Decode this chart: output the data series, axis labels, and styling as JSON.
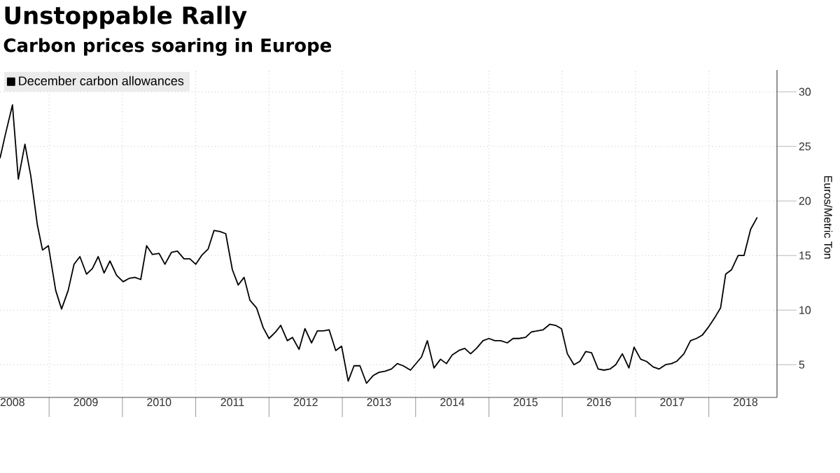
{
  "chart_data": {
    "type": "line",
    "title": "Unstoppable Rally",
    "subtitle": "Carbon prices soaring in Europe",
    "ylabel": "Euros/Metric Ton",
    "xlim": [
      2008.33,
      2018.93
    ],
    "ylim": [
      2,
      32
    ],
    "xticks": [
      {
        "value": 2009,
        "label": null
      },
      {
        "value": 2010,
        "label": null
      },
      {
        "value": 2011,
        "label": null
      },
      {
        "value": 2012,
        "label": null
      },
      {
        "value": 2013,
        "label": null
      },
      {
        "value": 2014,
        "label": null
      },
      {
        "value": 2015,
        "label": null
      },
      {
        "value": 2016,
        "label": null
      },
      {
        "value": 2017,
        "label": null
      },
      {
        "value": 2018,
        "label": null
      },
      {
        "value": 2008.5,
        "label": "2008"
      },
      {
        "value": 2009.5,
        "label": "2009"
      },
      {
        "value": 2010.5,
        "label": "2010"
      },
      {
        "value": 2011.5,
        "label": "2011"
      },
      {
        "value": 2012.5,
        "label": "2012"
      },
      {
        "value": 2013.5,
        "label": "2013"
      },
      {
        "value": 2014.5,
        "label": "2014"
      },
      {
        "value": 2015.5,
        "label": "2015"
      },
      {
        "value": 2016.5,
        "label": "2016"
      },
      {
        "value": 2017.5,
        "label": "2017"
      },
      {
        "value": 2018.5,
        "label": "2018"
      }
    ],
    "yticks": [
      5,
      10,
      15,
      20,
      25,
      30
    ],
    "grid": true,
    "legend": "top left",
    "series": [
      {
        "name": "December carbon allowances",
        "color": "#000000",
        "x": [
          2008.33,
          2008.4,
          2008.5,
          2008.58,
          2008.67,
          2008.75,
          2008.84,
          2008.91,
          2008.99,
          2009.09,
          2009.17,
          2009.26,
          2009.34,
          2009.42,
          2009.51,
          2009.59,
          2009.67,
          2009.75,
          2009.83,
          2009.92,
          2010.01,
          2010.09,
          2010.17,
          2010.25,
          2010.33,
          2010.41,
          2010.5,
          2010.58,
          2010.67,
          2010.75,
          2010.84,
          2010.92,
          2011.0,
          2011.08,
          2011.17,
          2011.25,
          2011.33,
          2011.41,
          2011.5,
          2011.58,
          2011.66,
          2011.74,
          2011.83,
          2011.92,
          2012.0,
          2012.09,
          2012.16,
          2012.25,
          2012.32,
          2012.41,
          2012.49,
          2012.58,
          2012.66,
          2012.74,
          2012.82,
          2012.91,
          2012.99,
          2013.08,
          2013.16,
          2013.24,
          2013.33,
          2013.42,
          2013.5,
          2013.58,
          2013.67,
          2013.75,
          2013.83,
          2013.93,
          2014.08,
          2014.16,
          2014.25,
          2014.34,
          2014.42,
          2014.5,
          2014.59,
          2014.67,
          2014.75,
          2014.83,
          2014.92,
          2015.0,
          2015.08,
          2015.16,
          2015.25,
          2015.33,
          2015.41,
          2015.5,
          2015.58,
          2015.66,
          2015.74,
          2015.83,
          2015.91,
          2015.99,
          2016.07,
          2016.16,
          2016.24,
          2016.32,
          2016.4,
          2016.49,
          2016.57,
          2016.65,
          2016.73,
          2016.82,
          2016.91,
          2016.98,
          2017.07,
          2017.15,
          2017.24,
          2017.32,
          2017.41,
          2017.49,
          2017.56,
          2017.66,
          2017.75,
          2017.83,
          2017.91,
          2017.99,
          2018.08,
          2018.16,
          2018.23,
          2018.31,
          2018.4,
          2018.48,
          2018.57,
          2018.66
        ],
        "values": [
          23.9,
          26.0,
          28.8,
          22.0,
          25.2,
          22.3,
          17.8,
          15.5,
          15.9,
          11.8,
          10.1,
          11.8,
          14.2,
          14.9,
          13.3,
          13.8,
          14.9,
          13.4,
          14.5,
          13.2,
          12.6,
          12.9,
          13.0,
          12.8,
          15.9,
          15.1,
          15.2,
          14.2,
          15.3,
          15.4,
          14.7,
          14.7,
          14.2,
          15.0,
          15.6,
          17.3,
          17.2,
          17.0,
          13.7,
          12.3,
          13.0,
          10.9,
          10.2,
          8.4,
          7.4,
          8.0,
          8.6,
          7.2,
          7.5,
          6.4,
          8.3,
          7.0,
          8.1,
          8.1,
          8.2,
          6.3,
          6.7,
          3.5,
          4.9,
          4.9,
          3.3,
          4.0,
          4.3,
          4.4,
          4.6,
          5.1,
          4.9,
          4.5,
          5.7,
          7.2,
          4.7,
          5.5,
          5.1,
          5.9,
          6.3,
          6.5,
          6.0,
          6.5,
          7.2,
          7.4,
          7.2,
          7.2,
          7.0,
          7.4,
          7.4,
          7.5,
          8.0,
          8.1,
          8.2,
          8.7,
          8.6,
          8.3,
          6.0,
          5.0,
          5.3,
          6.2,
          6.1,
          4.6,
          4.5,
          4.6,
          5.0,
          6.0,
          4.7,
          6.6,
          5.5,
          5.3,
          4.8,
          4.6,
          5.0,
          5.1,
          5.3,
          6.0,
          7.2,
          7.4,
          7.7,
          8.4,
          9.3,
          10.2,
          13.3,
          13.7,
          15.0,
          15.0,
          17.4,
          18.5
        ]
      }
    ]
  }
}
